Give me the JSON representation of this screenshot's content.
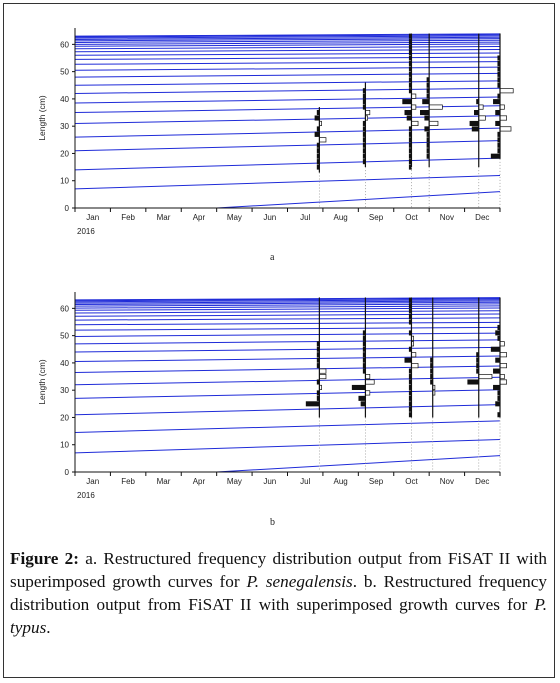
{
  "caption": {
    "label": "Figure 2:",
    "p1": " a. Restructured frequency distribution output from FiSAT II with superimposed growth curves for ",
    "sp1": "P. senegalensis",
    "p2": ". b. Restructured frequency distribution output from FiSAT II with superimposed growth curves for ",
    "sp2": "P. typus",
    "p3": "."
  },
  "chart_data": [
    {
      "panel": "a",
      "type": "line",
      "ylabel": "Length (cm)",
      "ylim": [
        0,
        66
      ],
      "yticks": [
        0,
        10,
        20,
        30,
        40,
        50,
        60
      ],
      "xlim": [
        0,
        12
      ],
      "months": [
        "Jan",
        "Feb",
        "Mar",
        "Apr",
        "May",
        "Jun",
        "Jul",
        "Aug",
        "Sep",
        "Oct",
        "Nov",
        "Dec"
      ],
      "year": "2016",
      "growth_curve_offsets": [
        0,
        7,
        14,
        21,
        26,
        31,
        35,
        38.5,
        42,
        45,
        48,
        50.5,
        52.7,
        54.5,
        56,
        57.3,
        58.4,
        59.3,
        60,
        60.7,
        61.3,
        61.8,
        62.3,
        62.7,
        63
      ],
      "sample_lines": [
        {
          "month": 6.9,
          "top": 37,
          "bottom": 13
        },
        {
          "month": 8.2,
          "top": 46,
          "bottom": 15
        },
        {
          "month": 9.5,
          "top": 64,
          "bottom": 15
        },
        {
          "month": 10.0,
          "top": 64,
          "bottom": 15
        },
        {
          "month": 11.4,
          "top": 64,
          "bottom": 15
        },
        {
          "month": 12.0,
          "top": 64,
          "bottom": 18
        }
      ],
      "histograms": [
        {
          "month": 6.9,
          "bins": [
            [
              15,
              -1
            ],
            [
              17,
              -1
            ],
            [
              19,
              -1
            ],
            [
              21,
              -1
            ],
            [
              23,
              -1
            ],
            [
              25,
              3
            ],
            [
              27,
              -2
            ],
            [
              29,
              -1
            ],
            [
              31,
              1
            ],
            [
              33,
              -2
            ],
            [
              35,
              -1
            ]
          ]
        },
        {
          "month": 8.2,
          "bins": [
            [
              17,
              -1
            ],
            [
              19,
              -1
            ],
            [
              21,
              -1
            ],
            [
              23,
              -1
            ],
            [
              25,
              -1
            ],
            [
              27,
              -1
            ],
            [
              29,
              -1
            ],
            [
              31,
              -1
            ],
            [
              33,
              1
            ],
            [
              35,
              2
            ],
            [
              37,
              -1
            ],
            [
              39,
              -1
            ],
            [
              41,
              -1
            ],
            [
              43,
              -1
            ]
          ]
        },
        {
          "month": 9.5,
          "bins": [
            [
              15,
              -1
            ],
            [
              17,
              -1
            ],
            [
              19,
              -1
            ],
            [
              21,
              -1
            ],
            [
              23,
              -1
            ],
            [
              25,
              -1
            ],
            [
              27,
              -1
            ],
            [
              29,
              -1
            ],
            [
              31,
              3
            ],
            [
              33,
              -2
            ],
            [
              35,
              -3
            ],
            [
              37,
              2
            ],
            [
              39,
              -4
            ],
            [
              41,
              2
            ],
            [
              43,
              -1
            ],
            [
              45,
              -1
            ],
            [
              47,
              -1
            ],
            [
              49,
              -1
            ],
            [
              51,
              -1
            ],
            [
              53,
              -1
            ],
            [
              55,
              -1
            ],
            [
              57,
              -1
            ],
            [
              59,
              -1
            ],
            [
              61,
              -1
            ],
            [
              63,
              -1
            ]
          ]
        },
        {
          "month": 10.0,
          "bins": [
            [
              19,
              -1
            ],
            [
              21,
              -1
            ],
            [
              23,
              -1
            ],
            [
              25,
              -1
            ],
            [
              27,
              -1
            ],
            [
              29,
              -2
            ],
            [
              31,
              4
            ],
            [
              33,
              -2
            ],
            [
              35,
              -4
            ],
            [
              37,
              6
            ],
            [
              39,
              -3
            ],
            [
              41,
              -1
            ],
            [
              43,
              -1
            ],
            [
              45,
              -1
            ],
            [
              47,
              -1
            ]
          ]
        },
        {
          "month": 11.4,
          "bins": [
            [
              29,
              -3
            ],
            [
              31,
              -4
            ],
            [
              33,
              3
            ],
            [
              35,
              -2
            ],
            [
              37,
              2
            ],
            [
              39,
              -1
            ]
          ]
        },
        {
          "month": 12.0,
          "bins": [
            [
              19,
              -4
            ],
            [
              21,
              -1
            ],
            [
              23,
              -1
            ],
            [
              25,
              -1
            ],
            [
              27,
              -1
            ],
            [
              29,
              5
            ],
            [
              31,
              -2
            ],
            [
              33,
              3
            ],
            [
              35,
              -2
            ],
            [
              37,
              2
            ],
            [
              39,
              -3
            ],
            [
              41,
              -1
            ],
            [
              43,
              6
            ],
            [
              45,
              -1
            ],
            [
              47,
              -1
            ],
            [
              49,
              -1
            ],
            [
              51,
              -1
            ],
            [
              53,
              -1
            ],
            [
              55,
              -1
            ]
          ]
        }
      ]
    },
    {
      "panel": "b",
      "type": "line",
      "ylabel": "Length (cm)",
      "ylim": [
        0,
        66
      ],
      "yticks": [
        0,
        10,
        20,
        30,
        40,
        50,
        60
      ],
      "xlim": [
        0,
        12
      ],
      "months": [
        "Jan",
        "Feb",
        "Mar",
        "Apr",
        "May",
        "Jun",
        "Jul",
        "Aug",
        "Sep",
        "Oct",
        "Nov",
        "Dec"
      ],
      "year": "2016",
      "growth_curve_offsets": [
        0,
        7,
        14.5,
        21,
        27,
        32,
        36.5,
        40.5,
        44,
        47,
        49.7,
        52,
        54,
        55.7,
        57.1,
        58.3,
        59.3,
        60.1,
        60.8,
        61.4,
        61.9,
        62.4,
        62.8,
        63.1
      ],
      "sample_lines": [
        {
          "month": 6.9,
          "top": 64,
          "bottom": 20
        },
        {
          "month": 8.2,
          "top": 64,
          "bottom": 20
        },
        {
          "month": 9.5,
          "top": 64,
          "bottom": 20
        },
        {
          "month": 10.1,
          "top": 64,
          "bottom": 20
        },
        {
          "month": 11.4,
          "top": 64,
          "bottom": 20
        },
        {
          "month": 12.0,
          "top": 64,
          "bottom": 20
        }
      ],
      "histograms": [
        {
          "month": 6.9,
          "bins": [
            [
              25,
              -6
            ],
            [
              27,
              -1
            ],
            [
              29,
              -1
            ],
            [
              31,
              1
            ],
            [
              33,
              -1
            ],
            [
              35,
              3
            ],
            [
              37,
              3
            ],
            [
              39,
              -1
            ],
            [
              41,
              -1
            ],
            [
              43,
              -1
            ],
            [
              45,
              -1
            ],
            [
              47,
              -1
            ]
          ]
        },
        {
          "month": 8.2,
          "bins": [
            [
              25,
              -2
            ],
            [
              27,
              -3
            ],
            [
              29,
              2
            ],
            [
              31,
              -6
            ],
            [
              33,
              4
            ],
            [
              35,
              2
            ],
            [
              37,
              -1
            ],
            [
              39,
              -1
            ],
            [
              41,
              -1
            ],
            [
              43,
              -1
            ],
            [
              45,
              -1
            ],
            [
              47,
              -1
            ],
            [
              49,
              -1
            ],
            [
              51,
              -1
            ]
          ]
        },
        {
          "month": 9.5,
          "bins": [
            [
              21,
              -1
            ],
            [
              23,
              -1
            ],
            [
              25,
              -1
            ],
            [
              27,
              -1
            ],
            [
              29,
              -1
            ],
            [
              31,
              -1
            ],
            [
              33,
              -1
            ],
            [
              35,
              -1
            ],
            [
              37,
              -1
            ],
            [
              39,
              3
            ],
            [
              41,
              -3
            ],
            [
              43,
              2
            ],
            [
              45,
              -1
            ],
            [
              47,
              1
            ],
            [
              49,
              1
            ],
            [
              51,
              -1
            ],
            [
              55,
              -1
            ],
            [
              57,
              -1
            ],
            [
              59,
              -1
            ],
            [
              61,
              -1
            ],
            [
              63,
              -1
            ]
          ]
        },
        {
          "month": 10.1,
          "bins": [
            [
              29,
              1
            ],
            [
              31,
              1
            ],
            [
              33,
              -1
            ],
            [
              35,
              -1
            ],
            [
              37,
              -1
            ],
            [
              39,
              -1
            ],
            [
              41,
              -1
            ]
          ]
        },
        {
          "month": 11.4,
          "bins": [
            [
              33,
              -5
            ],
            [
              35,
              6
            ],
            [
              37,
              -1
            ],
            [
              39,
              -1
            ],
            [
              41,
              -1
            ],
            [
              43,
              -1
            ]
          ]
        },
        {
          "month": 12.0,
          "bins": [
            [
              21,
              -1
            ],
            [
              25,
              -2
            ],
            [
              27,
              -1
            ],
            [
              29,
              -1
            ],
            [
              31,
              -3
            ],
            [
              33,
              3
            ],
            [
              35,
              2
            ],
            [
              37,
              -3
            ],
            [
              39,
              3
            ],
            [
              41,
              -2
            ],
            [
              43,
              3
            ],
            [
              45,
              -4
            ],
            [
              47,
              2
            ],
            [
              49,
              -1
            ],
            [
              51,
              -2
            ],
            [
              53,
              -1
            ]
          ]
        }
      ]
    }
  ]
}
